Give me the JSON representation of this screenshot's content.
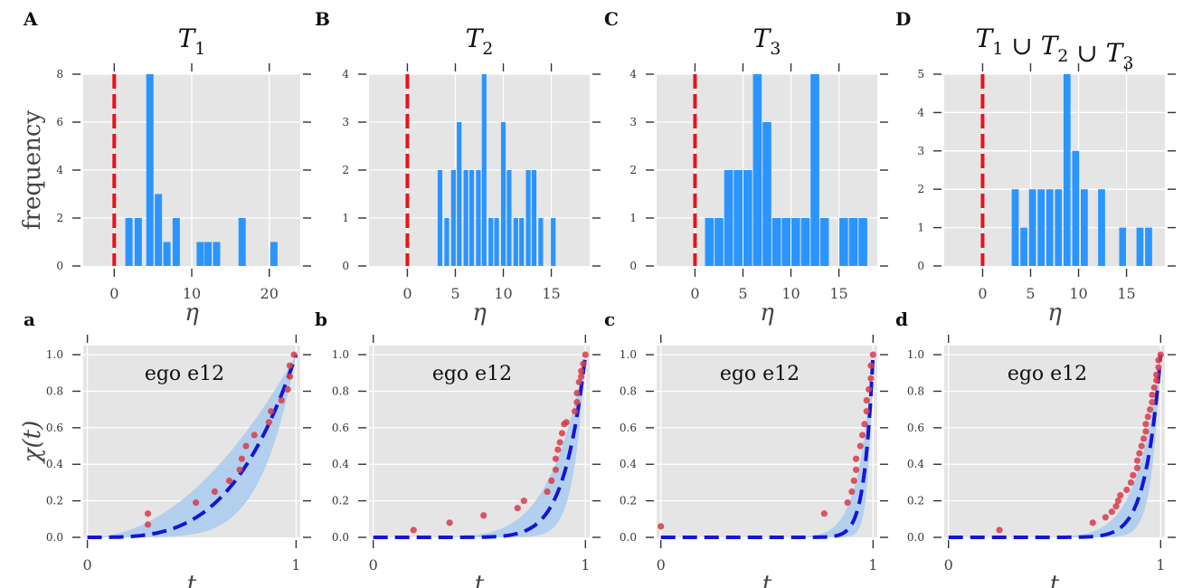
{
  "colors": {
    "bar": "#2b95ff",
    "red_line": "#e8141c",
    "fit_line": "#1515d6",
    "band": "#a9ccef",
    "point": "#d93a4a",
    "panel_bg": "#e5e5e5"
  },
  "chart_data": [
    {
      "type": "bar",
      "letter": "A",
      "title_main": "T",
      "title_sub": "1",
      "xlabel": "η",
      "ylabel": "frequency",
      "xlim": [
        -4,
        24
      ],
      "ylim": [
        0,
        8
      ],
      "xticks": [
        0,
        10,
        20
      ],
      "yticks": [
        0,
        2,
        4,
        6,
        8
      ],
      "bin_width": 1.1,
      "red_line_x": 0,
      "bins": [
        [
          1.9,
          2
        ],
        [
          3.1,
          2
        ],
        [
          4.6,
          8
        ],
        [
          5.7,
          3
        ],
        [
          6.8,
          1
        ],
        [
          8.0,
          2
        ],
        [
          11.1,
          1
        ],
        [
          12.1,
          1
        ],
        [
          13.2,
          1
        ],
        [
          16.5,
          2
        ],
        [
          20.6,
          1
        ]
      ]
    },
    {
      "type": "bar",
      "letter": "B",
      "title_main": "T",
      "title_sub": "2",
      "xlabel": "η",
      "ylabel": "",
      "xlim": [
        -4,
        19
      ],
      "ylim": [
        0,
        4
      ],
      "xticks": [
        0,
        5,
        10,
        15
      ],
      "yticks": [
        0,
        1,
        2,
        3,
        4
      ],
      "bin_width": 0.62,
      "red_line_x": 0,
      "bins": [
        [
          3.4,
          2
        ],
        [
          4.1,
          1
        ],
        [
          4.8,
          2
        ],
        [
          5.4,
          3
        ],
        [
          6.1,
          2
        ],
        [
          6.7,
          2
        ],
        [
          7.4,
          2
        ],
        [
          8.0,
          4
        ],
        [
          8.7,
          1
        ],
        [
          9.3,
          1
        ],
        [
          10.0,
          3
        ],
        [
          10.6,
          2
        ],
        [
          11.3,
          1
        ],
        [
          11.9,
          1
        ],
        [
          12.6,
          2
        ],
        [
          13.2,
          2
        ],
        [
          13.9,
          1
        ],
        [
          15.2,
          1
        ]
      ]
    },
    {
      "type": "bar",
      "letter": "C",
      "title_main": "T",
      "title_sub": "3",
      "xlabel": "η",
      "ylabel": "",
      "xlim": [
        -4,
        19
      ],
      "ylim": [
        0,
        4
      ],
      "xticks": [
        0,
        5,
        10,
        15
      ],
      "yticks": [
        0,
        1,
        2,
        3,
        4
      ],
      "bin_width": 1.04,
      "red_line_x": 0,
      "bins": [
        [
          1.5,
          1
        ],
        [
          2.5,
          1
        ],
        [
          3.5,
          2
        ],
        [
          4.5,
          2
        ],
        [
          5.5,
          2
        ],
        [
          6.5,
          4
        ],
        [
          7.5,
          3
        ],
        [
          8.5,
          1
        ],
        [
          9.5,
          1
        ],
        [
          10.5,
          1
        ],
        [
          11.5,
          1
        ],
        [
          12.5,
          4
        ],
        [
          13.5,
          1
        ],
        [
          15.5,
          1
        ],
        [
          16.5,
          1
        ],
        [
          17.5,
          1
        ]
      ]
    },
    {
      "type": "bar",
      "letter": "D",
      "title_main": "T",
      "title_sub": "1",
      "title_extra": [
        {
          "sep": " ∪ ",
          "main": "T",
          "sub": "2"
        },
        {
          "sep": " ∪ ",
          "main": "T",
          "sub": "3"
        }
      ],
      "xlabel": "η",
      "ylabel": "",
      "xlim": [
        -4,
        19
      ],
      "ylim": [
        0,
        5
      ],
      "xticks": [
        0,
        5,
        10,
        15
      ],
      "yticks": [
        0,
        1,
        2,
        3,
        4,
        5
      ],
      "bin_width": 0.86,
      "red_line_x": 0,
      "bins": [
        [
          3.4,
          2
        ],
        [
          4.3,
          1
        ],
        [
          5.2,
          2
        ],
        [
          6.1,
          2
        ],
        [
          7.0,
          2
        ],
        [
          7.9,
          2
        ],
        [
          8.8,
          5
        ],
        [
          9.7,
          3
        ],
        [
          10.6,
          2
        ],
        [
          12.4,
          2
        ],
        [
          14.6,
          1
        ],
        [
          16.4,
          1
        ],
        [
          17.3,
          1
        ]
      ]
    },
    {
      "type": "scatter",
      "letter": "a",
      "annotation": "ego e12",
      "xlabel": "t",
      "ylabel": "χ(t)",
      "xlim": [
        -0.02,
        1.02
      ],
      "ylim": [
        0,
        1.05
      ],
      "xticks": [
        0,
        1
      ],
      "yticks": [
        0.0,
        0.2,
        0.4,
        0.6,
        0.8,
        1.0
      ],
      "fit_exponent": 3.4,
      "band_exponents": [
        2.0,
        6.0
      ],
      "points": [
        [
          0.29,
          0.13
        ],
        [
          0.29,
          0.07
        ],
        [
          0.52,
          0.19
        ],
        [
          0.61,
          0.25
        ],
        [
          0.68,
          0.31
        ],
        [
          0.73,
          0.37
        ],
        [
          0.74,
          0.43
        ],
        [
          0.76,
          0.5
        ],
        [
          0.8,
          0.56
        ],
        [
          0.87,
          0.63
        ],
        [
          0.88,
          0.69
        ],
        [
          0.93,
          0.75
        ],
        [
          0.96,
          0.81
        ],
        [
          0.97,
          0.88
        ],
        [
          0.97,
          0.94
        ],
        [
          0.99,
          1.0
        ]
      ]
    },
    {
      "type": "scatter",
      "letter": "b",
      "annotation": "ego e12",
      "xlabel": "t",
      "ylabel": "",
      "xlim": [
        -0.02,
        1.02
      ],
      "ylim": [
        0,
        1.05
      ],
      "xticks": [
        0,
        1
      ],
      "yticks": [
        0.0,
        0.2,
        0.4,
        0.6,
        0.8,
        1.0
      ],
      "fit_exponent": 10,
      "band_exponents": [
        6,
        18
      ],
      "points": [
        [
          0.19,
          0.04
        ],
        [
          0.36,
          0.08
        ],
        [
          0.52,
          0.12
        ],
        [
          0.68,
          0.16
        ],
        [
          0.71,
          0.2
        ],
        [
          0.82,
          0.25
        ],
        [
          0.84,
          0.31
        ],
        [
          0.86,
          0.37
        ],
        [
          0.86,
          0.43
        ],
        [
          0.87,
          0.48
        ],
        [
          0.88,
          0.52
        ],
        [
          0.89,
          0.57
        ],
        [
          0.9,
          0.62
        ],
        [
          0.91,
          0.63
        ],
        [
          0.95,
          0.69
        ],
        [
          0.96,
          0.74
        ],
        [
          0.96,
          0.79
        ],
        [
          0.97,
          0.85
        ],
        [
          0.98,
          0.88
        ],
        [
          0.98,
          0.91
        ],
        [
          0.99,
          0.95
        ],
        [
          1.0,
          1.0
        ]
      ]
    },
    {
      "type": "scatter",
      "letter": "c",
      "annotation": "ego e12",
      "xlabel": "t",
      "ylabel": "",
      "xlim": [
        -0.02,
        1.02
      ],
      "ylim": [
        0,
        1.05
      ],
      "xticks": [
        0,
        1
      ],
      "yticks": [
        0.0,
        0.2,
        0.4,
        0.6,
        0.8,
        1.0
      ],
      "fit_exponent": 25,
      "band_exponents": [
        14,
        45
      ],
      "points": [
        [
          0.0,
          0.06
        ],
        [
          0.77,
          0.13
        ],
        [
          0.88,
          0.19
        ],
        [
          0.9,
          0.25
        ],
        [
          0.91,
          0.31
        ],
        [
          0.92,
          0.37
        ],
        [
          0.92,
          0.43
        ],
        [
          0.94,
          0.5
        ],
        [
          0.95,
          0.56
        ],
        [
          0.96,
          0.62
        ],
        [
          0.97,
          0.69
        ],
        [
          0.97,
          0.75
        ],
        [
          0.98,
          0.81
        ],
        [
          0.99,
          0.87
        ],
        [
          0.99,
          0.94
        ],
        [
          1.0,
          1.0
        ]
      ]
    },
    {
      "type": "scatter",
      "letter": "d",
      "annotation": "ego e12",
      "xlabel": "t",
      "ylabel": "",
      "xlim": [
        -0.02,
        1.02
      ],
      "ylim": [
        0,
        1.05
      ],
      "xticks": [
        0,
        1
      ],
      "yticks": [
        0.0,
        0.2,
        0.4,
        0.6,
        0.8,
        1.0
      ],
      "fit_exponent": 14,
      "band_exponents": [
        9,
        24
      ],
      "points": [
        [
          0.24,
          0.04
        ],
        [
          0.68,
          0.08
        ],
        [
          0.74,
          0.11
        ],
        [
          0.77,
          0.14
        ],
        [
          0.79,
          0.17
        ],
        [
          0.8,
          0.2
        ],
        [
          0.81,
          0.23
        ],
        [
          0.84,
          0.26
        ],
        [
          0.86,
          0.3
        ],
        [
          0.87,
          0.34
        ],
        [
          0.89,
          0.38
        ],
        [
          0.89,
          0.42
        ],
        [
          0.9,
          0.46
        ],
        [
          0.91,
          0.5
        ],
        [
          0.92,
          0.54
        ],
        [
          0.93,
          0.58
        ],
        [
          0.93,
          0.62
        ],
        [
          0.94,
          0.66
        ],
        [
          0.95,
          0.7
        ],
        [
          0.96,
          0.74
        ],
        [
          0.96,
          0.78
        ],
        [
          0.97,
          0.82
        ],
        [
          0.98,
          0.86
        ],
        [
          0.98,
          0.89
        ],
        [
          0.99,
          0.93
        ],
        [
          0.99,
          0.97
        ],
        [
          1.0,
          1.0
        ]
      ]
    }
  ]
}
